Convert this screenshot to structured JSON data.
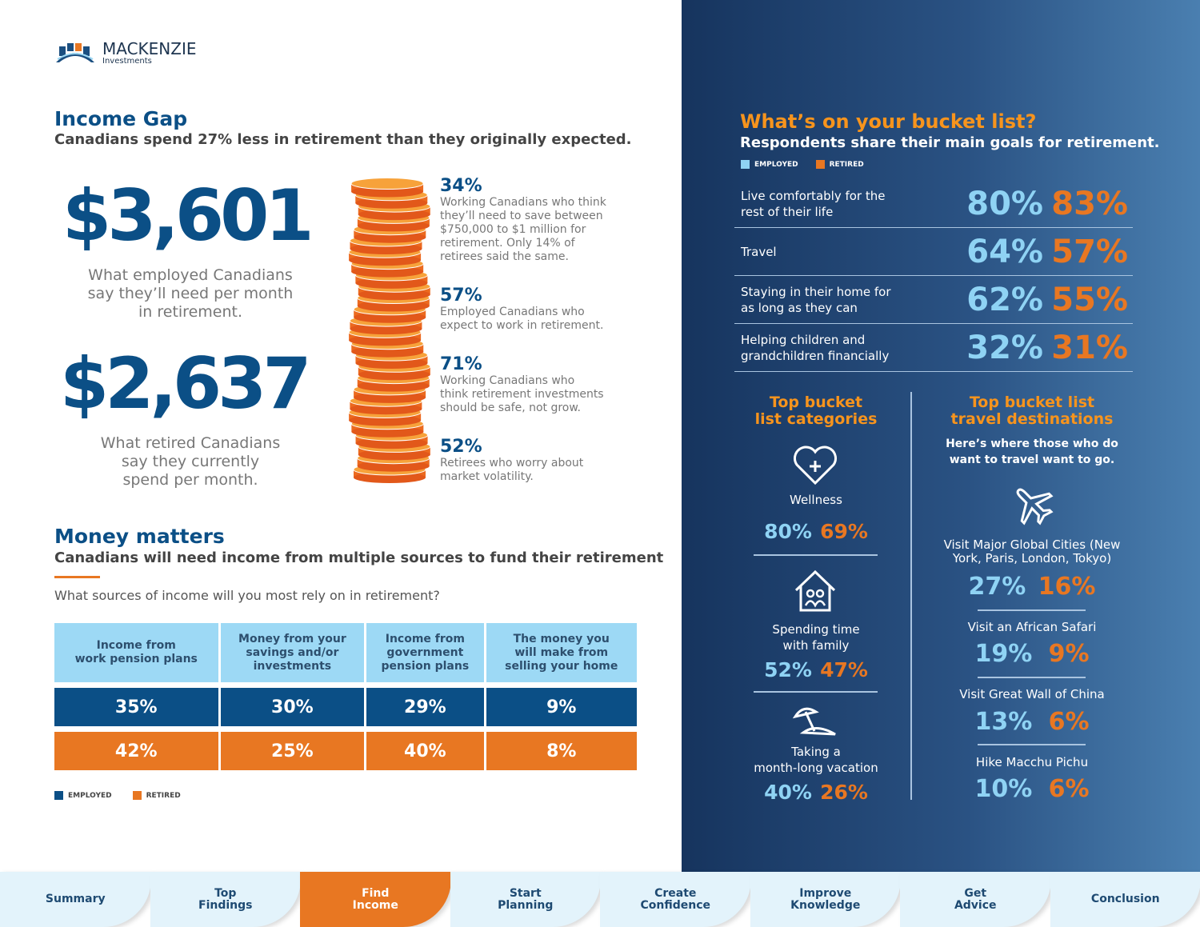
{
  "logo": {
    "name": "MACKENZIE",
    "sub": "Investments"
  },
  "income_gap": {
    "title": "Income Gap",
    "subtitle": "Canadians spend 27% less in retirement than they originally expected.",
    "amount1": "$3,601",
    "caption1": [
      "What employed Canadians",
      "say they’ll need per month",
      "in retirement."
    ],
    "amount2": "$2,637",
    "caption2": [
      "What retired Canadians",
      "say they currently",
      "spend per month."
    ],
    "stats": [
      {
        "pct": "34%",
        "text": [
          "Working Canadians who think",
          "they’ll need to save between",
          "$750,000 to $1 million for",
          "retirement. Only 14% of",
          "retirees said the same."
        ]
      },
      {
        "pct": "57%",
        "text": [
          "Employed Canadians who",
          "expect to work in retirement."
        ]
      },
      {
        "pct": "71%",
        "text": [
          "Working Canadians who",
          "think retirement investments",
          "should be safe, not grow."
        ]
      },
      {
        "pct": "52%",
        "text": [
          "Retirees who worry about",
          "market volatility."
        ]
      }
    ]
  },
  "money": {
    "title": "Money matters",
    "subtitle": "Canadians will need income from multiple sources to fund their retirement",
    "question": "What sources of income will you most rely on in retirement?",
    "headers": [
      [
        "Income from",
        "work pension plans"
      ],
      [
        "Money from your",
        "savings and/or",
        "investments"
      ],
      [
        "Income from",
        "government",
        "pension plans"
      ],
      [
        "The money you",
        "will make from",
        "selling your home"
      ]
    ],
    "employed": [
      "35%",
      "30%",
      "29%",
      "9%"
    ],
    "retired": [
      "42%",
      "25%",
      "40%",
      "8%"
    ],
    "legend_employed": "EMPLOYED",
    "legend_retired": "RETIRED"
  },
  "bucket": {
    "title": "What’s on your bucket list?",
    "subtitle": "Respondents share their main goals for retirement.",
    "legend_employed": "EMPLOYED",
    "legend_retired": "RETIRED",
    "rows": [
      {
        "label": [
          "Live comfortably for the",
          "rest of their life"
        ],
        "employed": "80%",
        "retired": "83%"
      },
      {
        "label": [
          "Travel"
        ],
        "employed": "64%",
        "retired": "57%"
      },
      {
        "label": [
          "Staying in their home for",
          "as long as they can"
        ],
        "employed": "62%",
        "retired": "55%"
      },
      {
        "label": [
          "Helping children and",
          "grandchildren financially"
        ],
        "employed": "32%",
        "retired": "31%"
      }
    ],
    "categories": {
      "title": [
        "Top bucket",
        "list categories"
      ],
      "items": [
        {
          "icon": "heart-plus-icon",
          "label": [
            "Wellness"
          ],
          "employed": "80%",
          "retired": "69%"
        },
        {
          "icon": "house-family-icon",
          "label": [
            "Spending time",
            "with family"
          ],
          "employed": "52%",
          "retired": "47%"
        },
        {
          "icon": "beach-umbrella-icon",
          "label": [
            "Taking a",
            "month-long vacation"
          ],
          "employed": "40%",
          "retired": "26%"
        }
      ]
    },
    "destinations": {
      "title": [
        "Top bucket list",
        "travel destinations"
      ],
      "intro": [
        "Here’s where those who do",
        "want to travel want to go."
      ],
      "items": [
        {
          "label": [
            "Visit Major Global Cities (New",
            "York, Paris, London, Tokyo)"
          ],
          "employed": "27%",
          "retired": "16%"
        },
        {
          "label": [
            "Visit an African Safari"
          ],
          "employed": "19%",
          "retired": "9%"
        },
        {
          "label": [
            "Visit Great Wall of China"
          ],
          "employed": "13%",
          "retired": "6%"
        },
        {
          "label": [
            "Hike Macchu Pichu"
          ],
          "employed": "10%",
          "retired": "6%"
        }
      ]
    }
  },
  "colors": {
    "blue": "#0b4f86",
    "orange": "#e87722",
    "light_blue": "#8fd3f4"
  },
  "nav": [
    [
      "Summary"
    ],
    [
      "Top",
      "Findings"
    ],
    [
      "Find",
      "Income"
    ],
    [
      "Start",
      "Planning"
    ],
    [
      "Create",
      "Confidence"
    ],
    [
      "Improve",
      "Knowledge"
    ],
    [
      "Get",
      "Advice"
    ],
    [
      "Conclusion"
    ]
  ],
  "nav_active": 2
}
